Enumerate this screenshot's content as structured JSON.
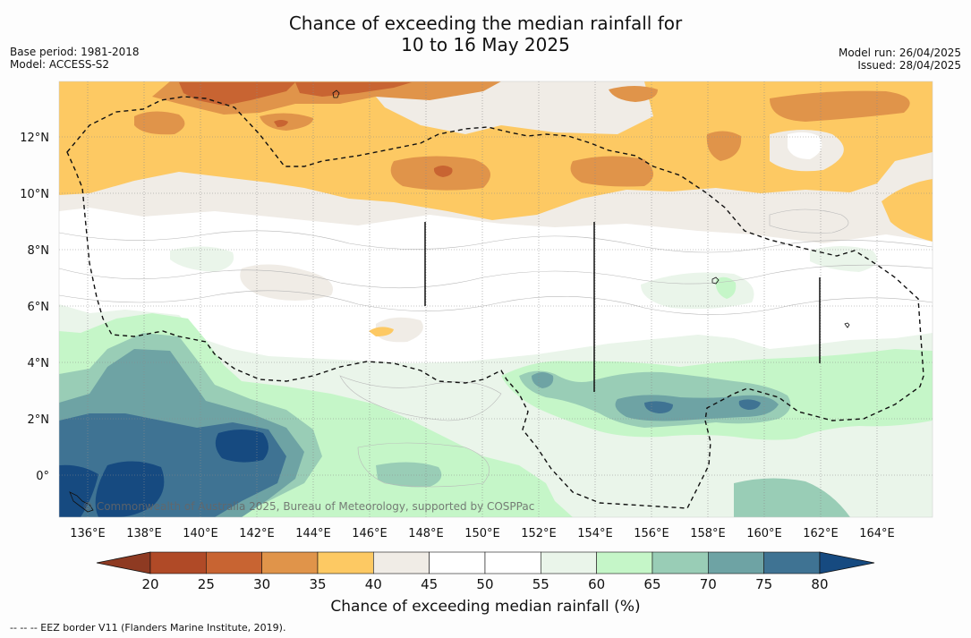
{
  "title_line1": "Chance of exceeding the median rainfall for",
  "title_line2": "10 to 16 May 2025",
  "meta_left": {
    "base_period": "Base period: 1981-2018",
    "model": "Model: ACCESS-S2"
  },
  "meta_right": {
    "model_run": "Model run: 26/04/2025",
    "issued": "Issued: 28/04/2025"
  },
  "map": {
    "lon_ticks": [
      "136°E",
      "138°E",
      "140°E",
      "142°E",
      "144°E",
      "146°E",
      "148°E",
      "150°E",
      "152°E",
      "154°E",
      "156°E",
      "158°E",
      "160°E",
      "162°E",
      "164°E"
    ],
    "lat_ticks": [
      "12°N",
      "10°N",
      "8°N",
      "6°N",
      "4°N",
      "2°N",
      "0°"
    ],
    "copyright": "© Commonwealth of Australia 2025, Bureau of Meteorology, supported by COSPPac"
  },
  "colorbar": {
    "title": "Chance of exceeding median rainfall (%)",
    "labels": [
      "20",
      "25",
      "30",
      "35",
      "40",
      "45",
      "50",
      "55",
      "60",
      "65",
      "70",
      "75",
      "80"
    ],
    "colors": [
      "#b04a27",
      "#c86432",
      "#e0944a",
      "#fdc963",
      "#f0ece6",
      "#ffffff",
      "#ffffff",
      "#eaf5ea",
      "#c5f6c8",
      "#99cdb6",
      "#6ea3a4",
      "#3f7393"
    ],
    "under_color": "#8e3a22",
    "over_color": "#164a80"
  },
  "legend": {
    "eez_note": "--  --  -- EEZ border V11 (Flanders Marine Institute, 2019)."
  }
}
